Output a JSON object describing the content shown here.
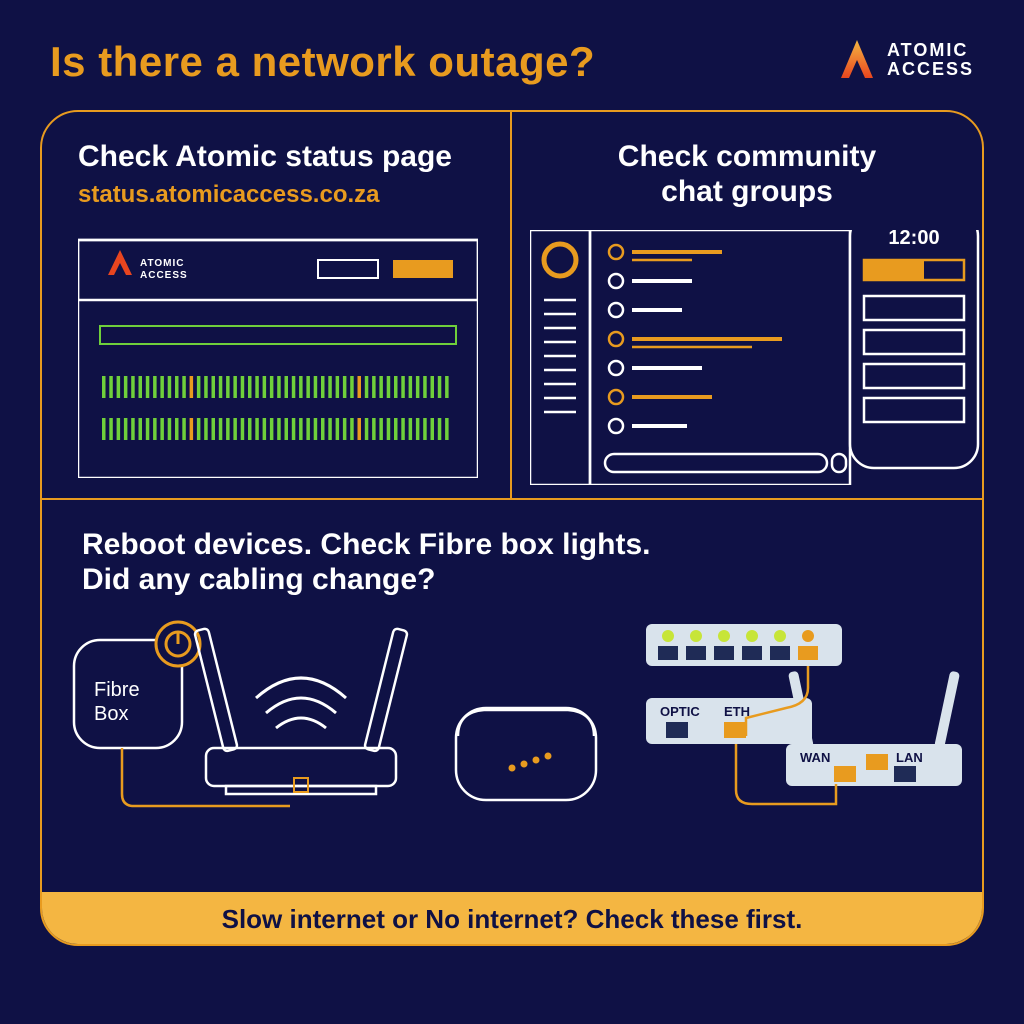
{
  "colors": {
    "bg": "#0f1145",
    "accent": "#e89b1f",
    "white": "#ffffff",
    "footer": "#f4b642",
    "green": "#6fd03b",
    "ltgrey": "#d9e3ec"
  },
  "type": "infographic",
  "title": "Is there a network outage?",
  "brand": {
    "name_l1": "ATOMIC",
    "name_l2": "ACCESS"
  },
  "panel1": {
    "heading": "Check Atomic status page",
    "url": "status.atomicaccess.co.za",
    "mini_logo": {
      "l1": "ATOMIC",
      "l2": "ACCESS"
    }
  },
  "panel2": {
    "heading_l1": "Check community",
    "heading_l2": "chat groups",
    "phone_time": "12:00"
  },
  "panel3": {
    "line1": "Reboot devices. Check Fibre box lights.",
    "line2": "Did any cabling change?",
    "fibre_l1": "Fibre",
    "fibre_l2": "Box",
    "port_optic": "OPTIC",
    "port_eth": "ETH",
    "port_wan": "WAN",
    "port_lan": "LAN"
  },
  "footer": "Slow internet or No internet? Check these first."
}
